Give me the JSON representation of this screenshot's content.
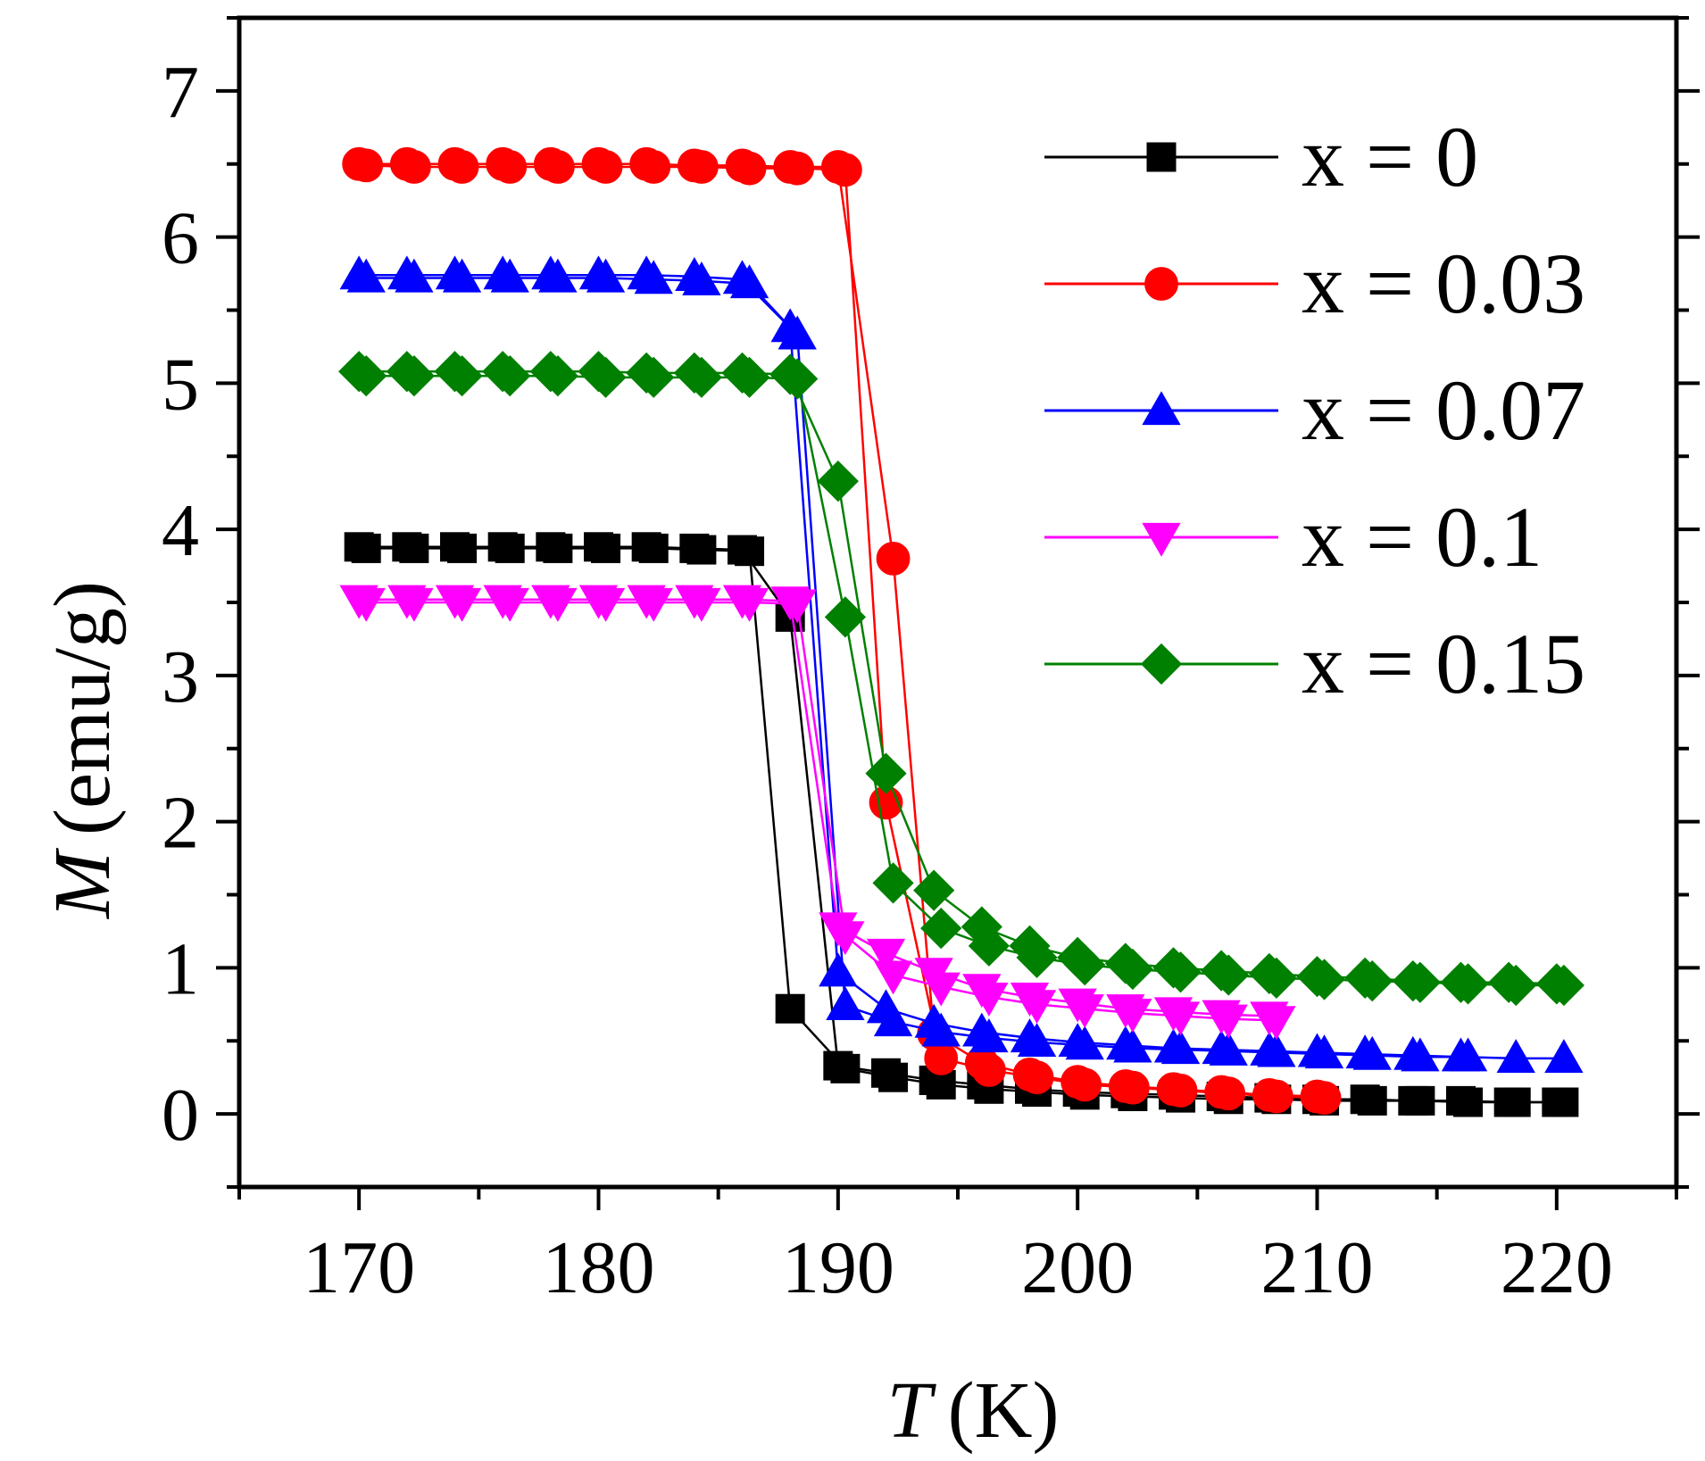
{
  "chart_data": {
    "type": "line",
    "title": "",
    "xlabel": {
      "symbol": "T",
      "unit": "(K)"
    },
    "ylabel": {
      "symbol": "M",
      "unit": "(emu/g)"
    },
    "xlim": [
      165,
      225
    ],
    "ylim": [
      -0.5,
      7.5
    ],
    "xticks": [
      170,
      180,
      190,
      200,
      210,
      220
    ],
    "yticks": [
      0,
      1,
      2,
      3,
      4,
      5,
      6,
      7
    ],
    "grid": false,
    "legend_position": "top-right",
    "series": [
      {
        "name": "x = 0",
        "color": "#000000",
        "marker": "square",
        "cooling": [
          [
            170,
            3.88
          ],
          [
            172,
            3.88
          ],
          [
            174,
            3.88
          ],
          [
            176,
            3.88
          ],
          [
            178,
            3.88
          ],
          [
            180,
            3.88
          ],
          [
            182,
            3.88
          ],
          [
            184,
            3.87
          ],
          [
            186,
            3.86
          ],
          [
            188,
            3.4
          ],
          [
            190,
            0.33
          ],
          [
            192,
            0.28
          ],
          [
            194,
            0.23
          ],
          [
            196,
            0.2
          ],
          [
            198,
            0.17
          ],
          [
            200,
            0.15
          ],
          [
            202,
            0.14
          ],
          [
            204,
            0.13
          ],
          [
            206,
            0.12
          ],
          [
            208,
            0.11
          ],
          [
            210,
            0.1
          ],
          [
            212,
            0.1
          ],
          [
            214,
            0.09
          ],
          [
            216,
            0.09
          ],
          [
            218,
            0.08
          ],
          [
            220,
            0.08
          ]
        ],
        "heating": [
          [
            170.3,
            3.87
          ],
          [
            172.3,
            3.87
          ],
          [
            174.3,
            3.87
          ],
          [
            176.3,
            3.87
          ],
          [
            178.3,
            3.87
          ],
          [
            180.3,
            3.87
          ],
          [
            182.3,
            3.87
          ],
          [
            184.3,
            3.86
          ],
          [
            186.3,
            3.85
          ],
          [
            188,
            0.72
          ],
          [
            190.3,
            0.31
          ],
          [
            192.3,
            0.25
          ],
          [
            194.3,
            0.2
          ],
          [
            196.3,
            0.17
          ],
          [
            198.3,
            0.15
          ],
          [
            200.3,
            0.13
          ],
          [
            202.3,
            0.12
          ],
          [
            204.3,
            0.11
          ],
          [
            206.3,
            0.1
          ],
          [
            208.3,
            0.1
          ],
          [
            210.3,
            0.09
          ],
          [
            212.3,
            0.09
          ],
          [
            214.3,
            0.09
          ],
          [
            216.3,
            0.08
          ],
          [
            218.3,
            0.08
          ],
          [
            220.3,
            0.08
          ]
        ]
      },
      {
        "name": "x = 0.03",
        "color": "#ff0000",
        "marker": "circle",
        "cooling": [
          [
            170,
            6.5
          ],
          [
            172,
            6.5
          ],
          [
            174,
            6.5
          ],
          [
            176,
            6.5
          ],
          [
            178,
            6.5
          ],
          [
            180,
            6.5
          ],
          [
            182,
            6.5
          ],
          [
            184,
            6.49
          ],
          [
            186,
            6.49
          ],
          [
            188,
            6.48
          ],
          [
            190,
            6.48
          ],
          [
            192.3,
            3.8
          ],
          [
            194,
            0.55
          ],
          [
            196,
            0.35
          ],
          [
            198,
            0.27
          ],
          [
            200,
            0.22
          ],
          [
            202,
            0.19
          ],
          [
            204,
            0.17
          ],
          [
            206,
            0.15
          ],
          [
            208,
            0.13
          ],
          [
            210,
            0.12
          ]
        ],
        "heating": [
          [
            170.3,
            6.49
          ],
          [
            172.3,
            6.48
          ],
          [
            174.3,
            6.48
          ],
          [
            176.3,
            6.48
          ],
          [
            178.3,
            6.48
          ],
          [
            180.3,
            6.48
          ],
          [
            182.3,
            6.48
          ],
          [
            184.3,
            6.48
          ],
          [
            186.3,
            6.47
          ],
          [
            188.3,
            6.47
          ],
          [
            190.3,
            6.46
          ],
          [
            192,
            2.13
          ],
          [
            194.3,
            0.38
          ],
          [
            196.3,
            0.3
          ],
          [
            198.3,
            0.25
          ],
          [
            200.3,
            0.2
          ],
          [
            202.3,
            0.18
          ],
          [
            204.3,
            0.16
          ],
          [
            206.3,
            0.14
          ],
          [
            208.3,
            0.12
          ],
          [
            210.3,
            0.11
          ]
        ]
      },
      {
        "name": "x = 0.07",
        "color": "#0000ff",
        "marker": "triangle-up",
        "cooling": [
          [
            170,
            5.74
          ],
          [
            172,
            5.74
          ],
          [
            174,
            5.74
          ],
          [
            176,
            5.74
          ],
          [
            178,
            5.74
          ],
          [
            180,
            5.74
          ],
          [
            182,
            5.74
          ],
          [
            184,
            5.73
          ],
          [
            186,
            5.71
          ],
          [
            188,
            5.38
          ],
          [
            190,
            0.97
          ],
          [
            192,
            0.72
          ],
          [
            194,
            0.62
          ],
          [
            196,
            0.56
          ],
          [
            198,
            0.52
          ],
          [
            200,
            0.49
          ],
          [
            202,
            0.47
          ],
          [
            204,
            0.45
          ],
          [
            206,
            0.44
          ],
          [
            208,
            0.43
          ],
          [
            210,
            0.42
          ],
          [
            212,
            0.41
          ],
          [
            214,
            0.4
          ],
          [
            216,
            0.39
          ],
          [
            218.3,
            0.38
          ],
          [
            220.3,
            0.38
          ]
        ],
        "heating": [
          [
            170.3,
            5.72
          ],
          [
            172.3,
            5.72
          ],
          [
            174.3,
            5.72
          ],
          [
            176.3,
            5.72
          ],
          [
            178.3,
            5.72
          ],
          [
            180.3,
            5.72
          ],
          [
            182.3,
            5.71
          ],
          [
            184.3,
            5.7
          ],
          [
            186.3,
            5.68
          ],
          [
            188.3,
            5.33
          ],
          [
            190.3,
            0.74
          ],
          [
            192.3,
            0.63
          ],
          [
            194.3,
            0.56
          ],
          [
            196.3,
            0.52
          ],
          [
            198.3,
            0.49
          ],
          [
            200.3,
            0.47
          ],
          [
            202.3,
            0.45
          ],
          [
            204.3,
            0.44
          ],
          [
            206.3,
            0.43
          ],
          [
            208.3,
            0.42
          ],
          [
            210.3,
            0.41
          ],
          [
            212.3,
            0.4
          ],
          [
            214.3,
            0.39
          ],
          [
            216.3,
            0.39
          ]
        ]
      },
      {
        "name": "x = 0.1",
        "color": "#ff00ff",
        "marker": "triangle-down",
        "cooling": [
          [
            170,
            3.52
          ],
          [
            172,
            3.52
          ],
          [
            174,
            3.52
          ],
          [
            176,
            3.52
          ],
          [
            178,
            3.52
          ],
          [
            180,
            3.52
          ],
          [
            182,
            3.52
          ],
          [
            184,
            3.52
          ],
          [
            186,
            3.52
          ],
          [
            188,
            3.51
          ],
          [
            190,
            1.28
          ],
          [
            192,
            1.1
          ],
          [
            194,
            0.97
          ],
          [
            196,
            0.86
          ],
          [
            198,
            0.8
          ],
          [
            200,
            0.76
          ],
          [
            202,
            0.72
          ],
          [
            204,
            0.7
          ],
          [
            206,
            0.68
          ],
          [
            208,
            0.67
          ]
        ],
        "heating": [
          [
            170.3,
            3.5
          ],
          [
            172.3,
            3.5
          ],
          [
            174.3,
            3.5
          ],
          [
            176.3,
            3.5
          ],
          [
            178.3,
            3.5
          ],
          [
            180.3,
            3.5
          ],
          [
            182.3,
            3.5
          ],
          [
            184.3,
            3.5
          ],
          [
            186.3,
            3.5
          ],
          [
            188.3,
            3.49
          ],
          [
            190.3,
            1.22
          ],
          [
            192.3,
            0.95
          ],
          [
            194.3,
            0.87
          ],
          [
            196.3,
            0.8
          ],
          [
            198.3,
            0.75
          ],
          [
            200.3,
            0.72
          ],
          [
            202.3,
            0.69
          ],
          [
            204.3,
            0.67
          ],
          [
            206.3,
            0.65
          ],
          [
            208.3,
            0.64
          ]
        ]
      },
      {
        "name": "x = 0.15",
        "color": "#008000",
        "marker": "diamond",
        "cooling": [
          [
            170,
            5.08
          ],
          [
            172,
            5.08
          ],
          [
            174,
            5.08
          ],
          [
            176,
            5.08
          ],
          [
            178,
            5.08
          ],
          [
            180,
            5.08
          ],
          [
            182,
            5.07
          ],
          [
            184,
            5.07
          ],
          [
            186,
            5.07
          ],
          [
            188,
            5.06
          ],
          [
            190,
            4.33
          ],
          [
            192,
            2.33
          ],
          [
            194,
            1.53
          ],
          [
            196,
            1.28
          ],
          [
            198,
            1.15
          ],
          [
            200,
            1.07
          ],
          [
            202,
            1.03
          ],
          [
            204,
            1.0
          ],
          [
            206,
            0.98
          ],
          [
            208,
            0.96
          ],
          [
            210,
            0.94
          ],
          [
            212,
            0.93
          ],
          [
            214,
            0.91
          ],
          [
            216,
            0.9
          ],
          [
            218,
            0.9
          ],
          [
            220,
            0.89
          ]
        ],
        "heating": [
          [
            170.3,
            5.05
          ],
          [
            172.3,
            5.05
          ],
          [
            174.3,
            5.05
          ],
          [
            176.3,
            5.05
          ],
          [
            178.3,
            5.05
          ],
          [
            180.3,
            5.04
          ],
          [
            182.3,
            5.04
          ],
          [
            184.3,
            5.04
          ],
          [
            186.3,
            5.04
          ],
          [
            188.3,
            5.03
          ],
          [
            190.3,
            3.4
          ],
          [
            192.3,
            1.58
          ],
          [
            194.3,
            1.27
          ],
          [
            196.3,
            1.15
          ],
          [
            198.3,
            1.07
          ],
          [
            200.3,
            1.02
          ],
          [
            202.3,
            0.99
          ],
          [
            204.3,
            0.97
          ],
          [
            206.3,
            0.95
          ],
          [
            208.3,
            0.93
          ],
          [
            210.3,
            0.92
          ],
          [
            212.3,
            0.91
          ],
          [
            214.3,
            0.9
          ],
          [
            216.3,
            0.89
          ],
          [
            218.3,
            0.88
          ],
          [
            220.3,
            0.88
          ]
        ]
      }
    ]
  }
}
